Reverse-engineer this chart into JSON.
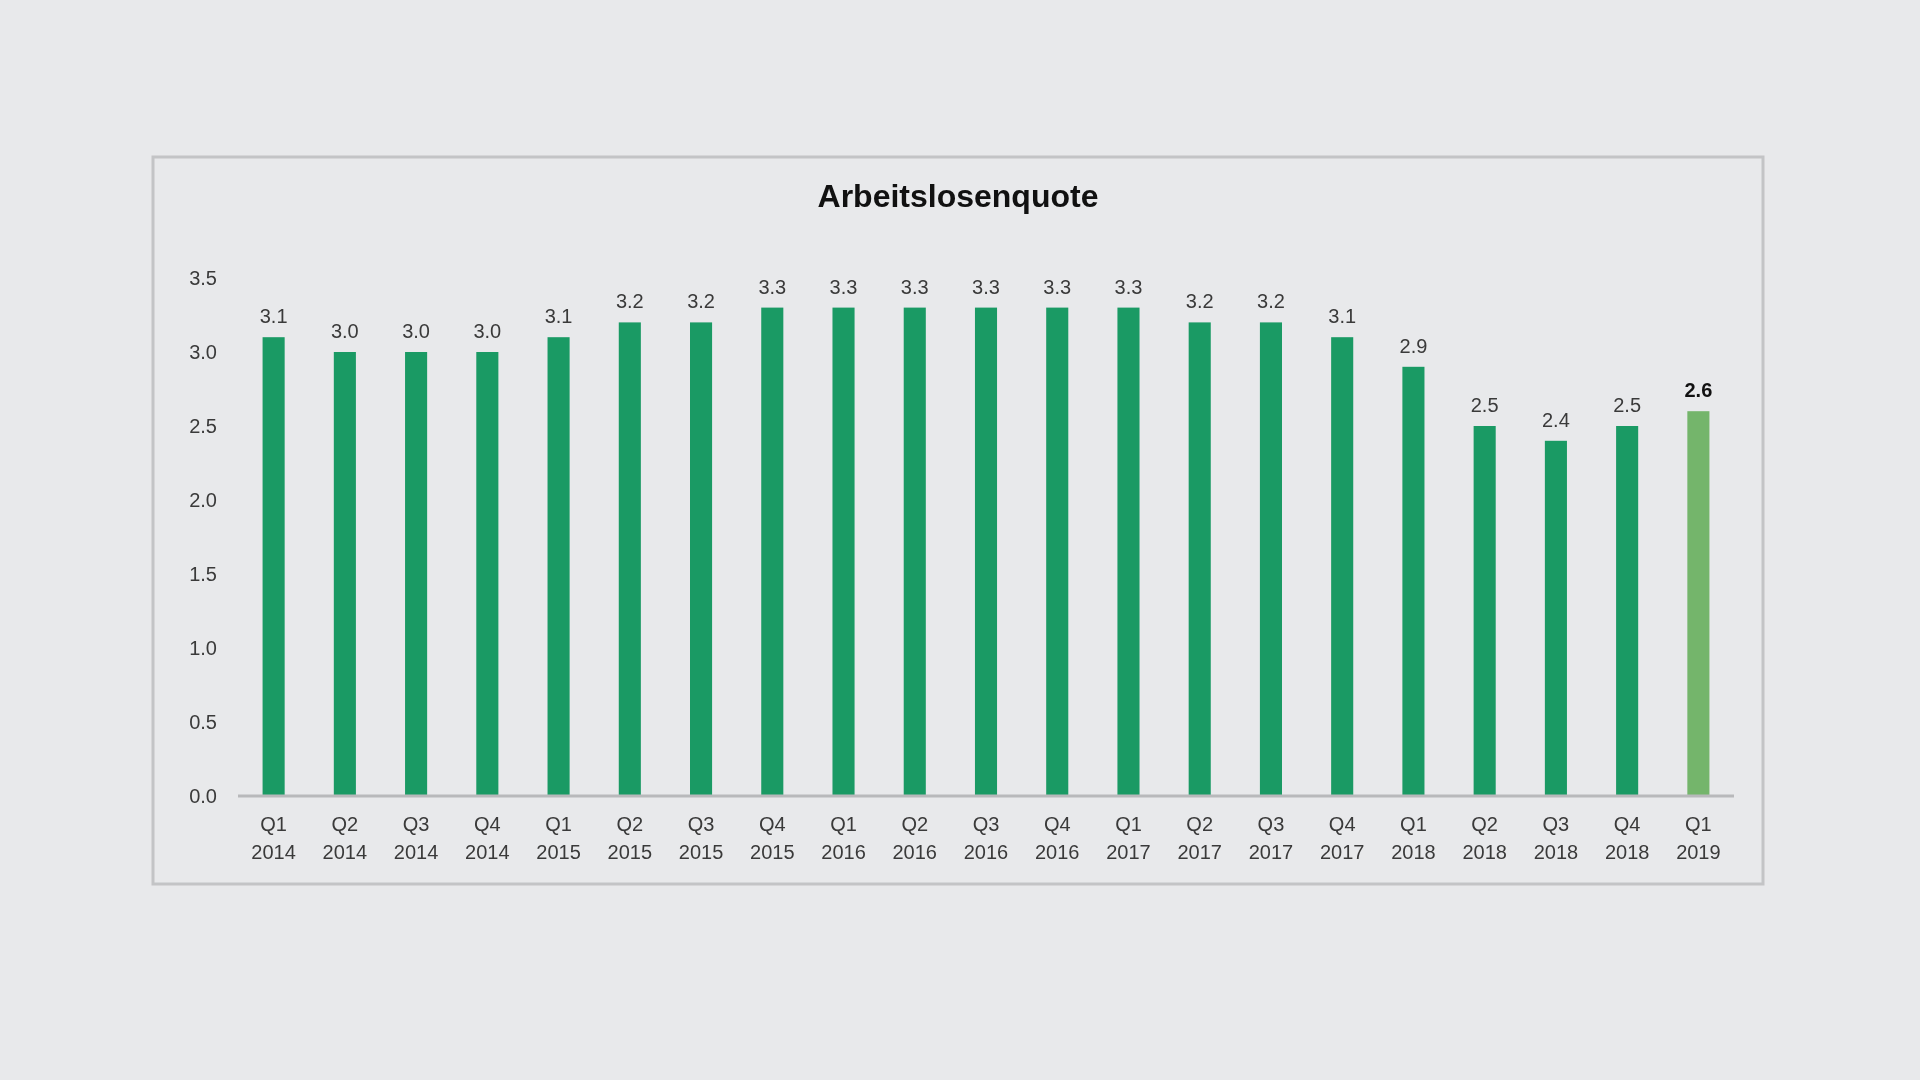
{
  "chart_data": {
    "type": "bar",
    "title": "Arbeitslosenquote",
    "categories": [
      "Q1 2014",
      "Q2 2014",
      "Q3 2014",
      "Q4 2014",
      "Q1 2015",
      "Q2 2015",
      "Q3 2015",
      "Q4 2015",
      "Q1 2016",
      "Q2 2016",
      "Q3 2016",
      "Q4 2016",
      "Q1 2017",
      "Q2 2017",
      "Q3 2017",
      "Q4 2017",
      "Q1 2018",
      "Q2 2018",
      "Q3 2018",
      "Q4 2018",
      "Q1 2019"
    ],
    "values": [
      3.1,
      3.0,
      3.0,
      3.0,
      3.1,
      3.2,
      3.2,
      3.3,
      3.3,
      3.3,
      3.3,
      3.3,
      3.3,
      3.2,
      3.2,
      3.1,
      2.9,
      2.5,
      2.4,
      2.5,
      2.6
    ],
    "value_labels": [
      "3.1",
      "3.0",
      "3.0",
      "3.0",
      "3.1",
      "3.2",
      "3.2",
      "3.3",
      "3.3",
      "3.3",
      "3.3",
      "3.3",
      "3.3",
      "3.2",
      "3.2",
      "3.1",
      "2.9",
      "2.5",
      "2.4",
      "2.5",
      "2.6"
    ],
    "colors": [
      "#1a9a64",
      "#1a9a64",
      "#1a9a64",
      "#1a9a64",
      "#1a9a64",
      "#1a9a64",
      "#1a9a64",
      "#1a9a64",
      "#1a9a64",
      "#1a9a64",
      "#1a9a64",
      "#1a9a64",
      "#1a9a64",
      "#1a9a64",
      "#1a9a64",
      "#1a9a64",
      "#1a9a64",
      "#1a9a64",
      "#1a9a64",
      "#1a9a64",
      "#74b56b"
    ],
    "ylim": [
      0,
      3.5
    ],
    "yticks": [
      {
        "value": 0,
        "label": "0.0"
      },
      0.5,
      {
        "value": 1,
        "label": "1.0"
      },
      1.5,
      {
        "value": 2,
        "label": "2.0"
      },
      2.5,
      {
        "value": 3,
        "label": "3.0"
      },
      3.5
    ]
  }
}
